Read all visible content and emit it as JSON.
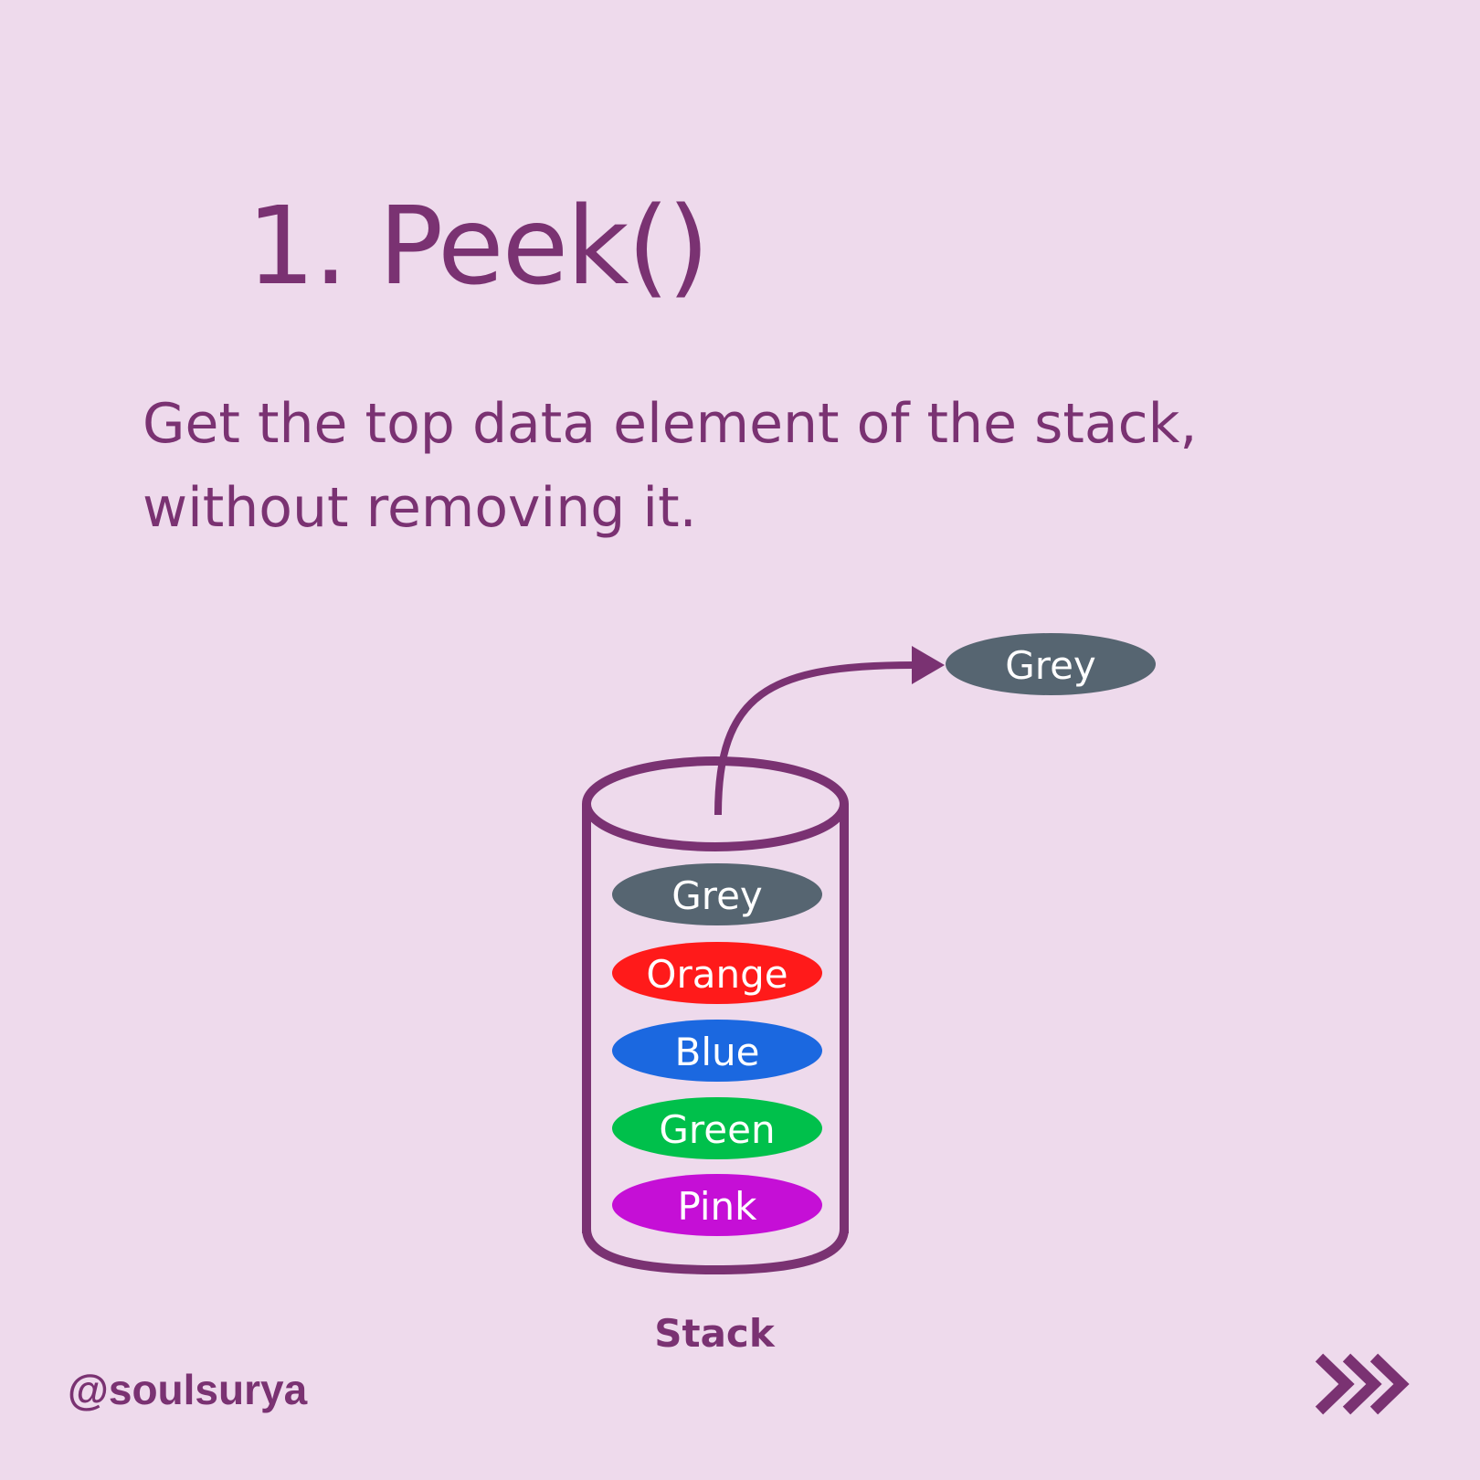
{
  "title": "1. Peek()",
  "description": {
    "line1": "Get the top data element of the stack,",
    "line2": "without removing it."
  },
  "diagram": {
    "stack_label": "Stack",
    "peeked_item": {
      "label": "Grey",
      "color": "#566571"
    },
    "items": [
      {
        "label": "Grey",
        "color": "#566571"
      },
      {
        "label": "Orange",
        "color": "#ff1a1a"
      },
      {
        "label": "Blue",
        "color": "#1b68e0"
      },
      {
        "label": "Green",
        "color": "#00c04b"
      },
      {
        "label": "Pink",
        "color": "#c50fd6"
      }
    ]
  },
  "footer": {
    "handle": "@soulsurya",
    "next_icon": "chevron-double-right-icon"
  },
  "colors": {
    "background": "#eedaec",
    "accent": "#7a3272",
    "item_text": "#ffffff"
  }
}
